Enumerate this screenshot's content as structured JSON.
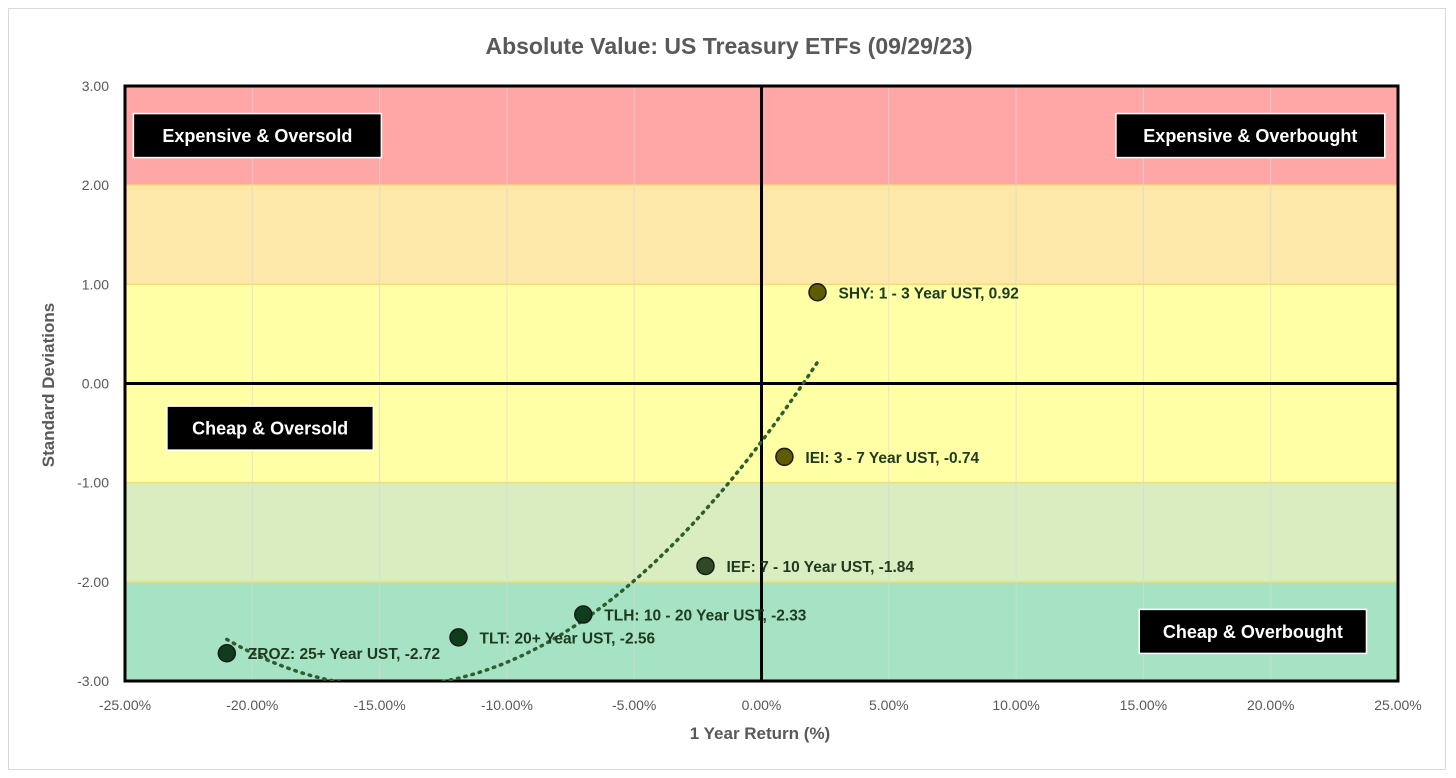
{
  "chart_data": {
    "type": "scatter",
    "title": "Absolute Value: US Treasury ETFs (09/29/23)",
    "xlabel": "1 Year Return (%)",
    "ylabel": "Standard Deviations",
    "xlim": [
      -25,
      25
    ],
    "ylim": [
      -3,
      3
    ],
    "x_ticks": [
      -25,
      -20,
      -15,
      -10,
      -5,
      0,
      5,
      10,
      15,
      20,
      25
    ],
    "x_tick_labels": [
      "-25.00%",
      "-20.00%",
      "-15.00%",
      "-10.00%",
      "-5.00%",
      "0.00%",
      "5.00%",
      "10.00%",
      "15.00%",
      "20.00%",
      "25.00%"
    ],
    "y_ticks": [
      3,
      2,
      1,
      0,
      -1,
      -2,
      -3
    ],
    "y_tick_labels": [
      "3.00",
      "2.00",
      "1.00",
      "0.00",
      "-1.00",
      "-2.00",
      "-3.00"
    ],
    "bands": [
      {
        "from": 2,
        "to": 3,
        "color": "#ffa7a7"
      },
      {
        "from": 1,
        "to": 2,
        "color": "#fde7a9"
      },
      {
        "from": -1,
        "to": 1,
        "color": "#ffffa6"
      },
      {
        "from": -2,
        "to": -1,
        "color": "#d9edc0"
      },
      {
        "from": -3,
        "to": -2,
        "color": "#a6e3c5"
      }
    ],
    "quadrant_labels": [
      {
        "text": "Expensive & Oversold",
        "x": -19.8,
        "y": 2.5
      },
      {
        "text": "Expensive & Overbought",
        "x": 19.2,
        "y": 2.5
      },
      {
        "text": "Cheap & Oversold",
        "x": -19.3,
        "y": -0.45
      },
      {
        "text": "Cheap & Overbought",
        "x": 19.3,
        "y": -2.5
      }
    ],
    "series": [
      {
        "name": "SHY",
        "label": "SHY: 1 - 3 Year UST, 0.92",
        "x": 2.2,
        "y": 0.92,
        "color": "#5f5c00"
      },
      {
        "name": "IEI",
        "label": "IEI: 3 - 7 Year UST, -0.74",
        "x": 0.9,
        "y": -0.74,
        "color": "#5f5c00"
      },
      {
        "name": "IEF",
        "label": "IEF: 7 - 10 Year UST, -1.84",
        "x": -2.2,
        "y": -1.84,
        "color": "#2d4a22"
      },
      {
        "name": "TLH",
        "label": "TLH: 10 - 20 Year UST, -2.33",
        "x": -7.0,
        "y": -2.33,
        "color": "#0e3d1c"
      },
      {
        "name": "TLT",
        "label": "TLT: 20+ Year UST, -2.56",
        "x": -11.9,
        "y": -2.56,
        "color": "#0e3d1c"
      },
      {
        "name": "ZROZ",
        "label": "ZROZ: 25+ Year UST, -2.72",
        "x": -21.0,
        "y": -2.72,
        "color": "#0e3d1c"
      }
    ],
    "trendline": {
      "type": "polynomial",
      "x_range": [
        -21,
        2.2
      ],
      "color": "#2e5e2e"
    },
    "colors": {
      "axis": "#000000",
      "grid": "#d9d9d9",
      "text": "#595959",
      "label_box": "#000000",
      "label_text": "#ffffff",
      "point_label": "#1f3a1f"
    }
  }
}
